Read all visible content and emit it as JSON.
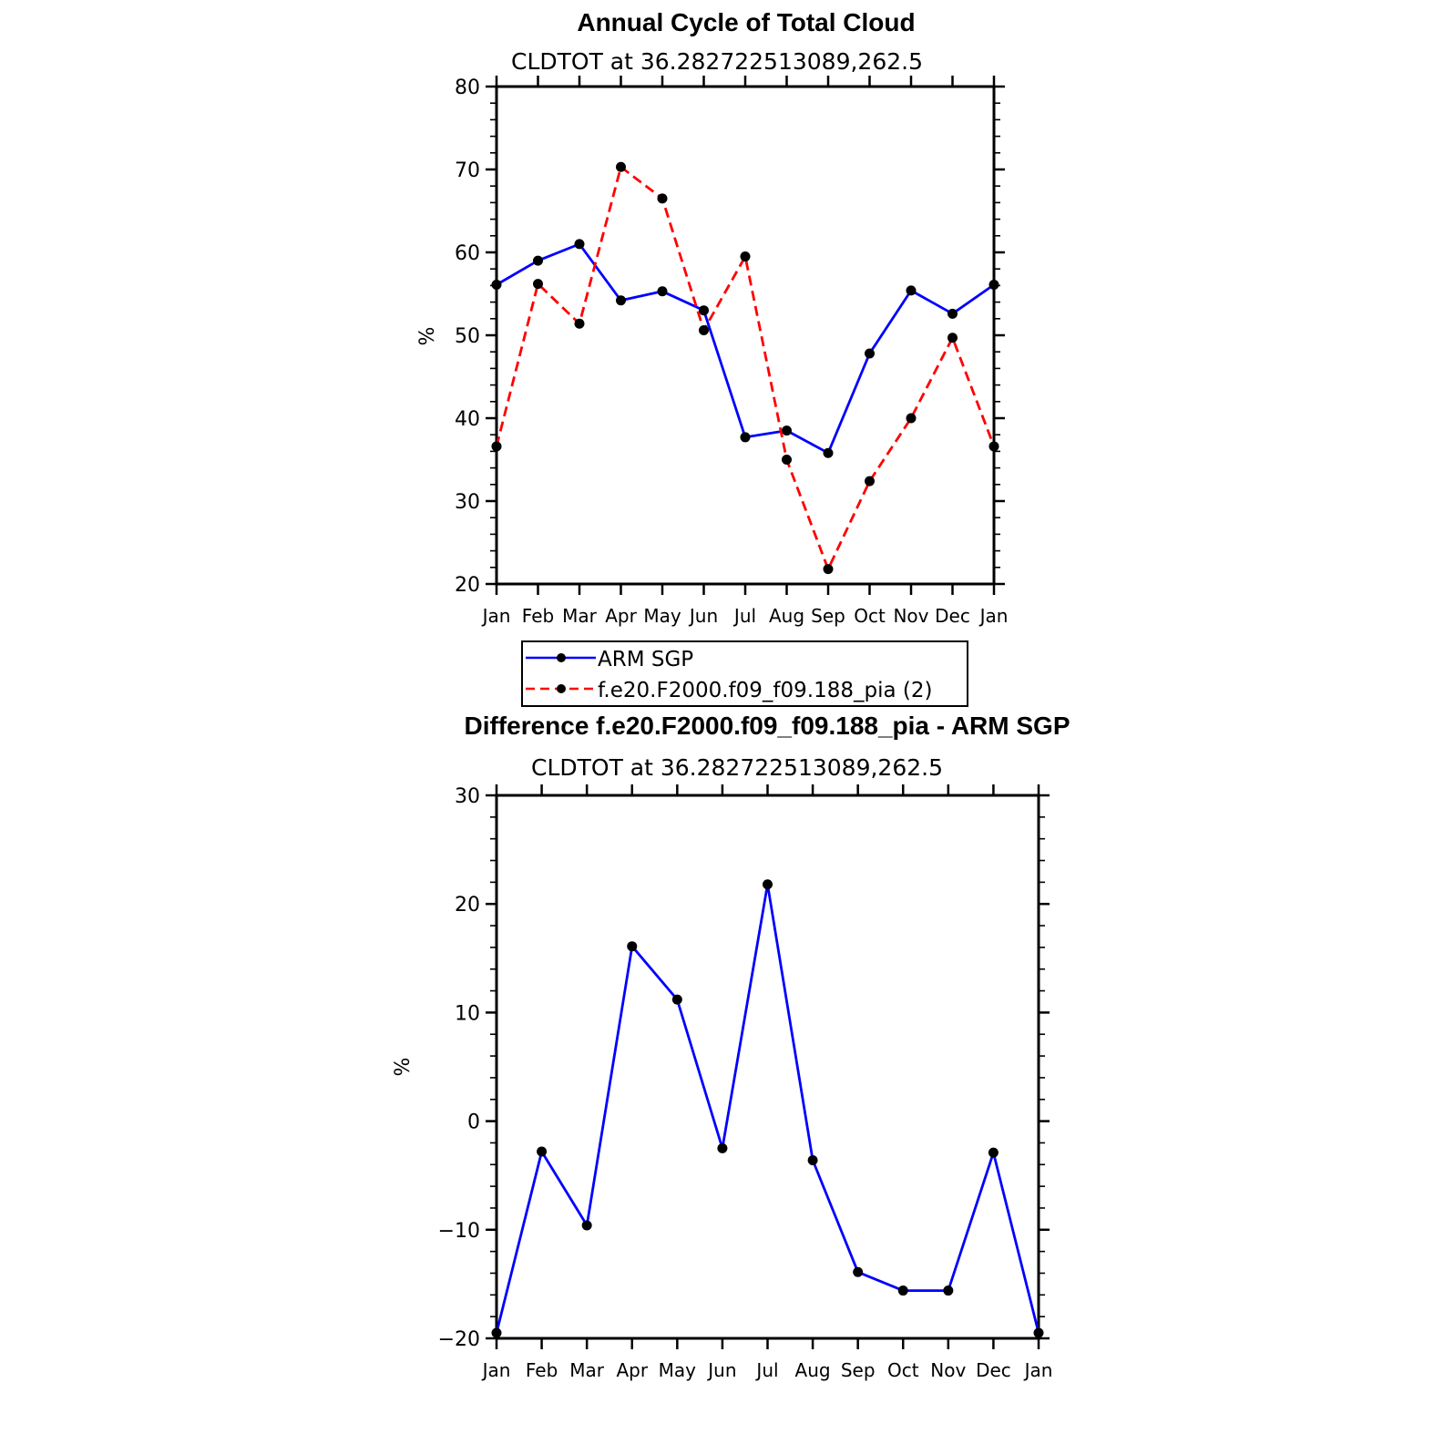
{
  "chart_data": [
    {
      "type": "line",
      "title": "Annual Cycle of Total Cloud",
      "subtitle": "CLDTOT at 36.282722513089,262.5",
      "ylabel": "%",
      "xlabel": "",
      "ylim": [
        20,
        80
      ],
      "yticks": [
        20,
        30,
        40,
        50,
        60,
        70,
        80
      ],
      "yticks_labels": [
        "20",
        "30",
        "40",
        "50",
        "60",
        "70",
        "80"
      ],
      "categories": [
        "Jan",
        "Feb",
        "Mar",
        "Apr",
        "May",
        "Jun",
        "Jul",
        "Aug",
        "Sep",
        "Oct",
        "Nov",
        "Dec",
        "Jan"
      ],
      "grid": false,
      "legend_placement": "bottom",
      "series": [
        {
          "name": "ARM SGP",
          "color": "#0000ff",
          "dash": "solid",
          "values": [
            56.1,
            59.0,
            61.0,
            54.2,
            55.3,
            53.0,
            37.7,
            38.5,
            35.8,
            47.8,
            55.4,
            52.6,
            56.1
          ]
        },
        {
          "name": "f.e20.F2000.f09_f09.188_pia (2)",
          "color": "#ff0000",
          "dash": "dashed",
          "values": [
            36.6,
            56.2,
            51.4,
            70.3,
            66.5,
            50.6,
            59.5,
            35.0,
            21.8,
            32.4,
            40.0,
            49.7,
            36.6
          ]
        }
      ]
    },
    {
      "type": "line",
      "title": "Difference f.e20.F2000.f09_f09.188_pia - ARM SGP",
      "subtitle": "CLDTOT at 36.282722513089,262.5",
      "ylabel": "%",
      "xlabel": "",
      "ylim": [
        -20,
        30
      ],
      "yticks": [
        -20,
        -10,
        0,
        10,
        20,
        30
      ],
      "yticks_labels": [
        "−20",
        "−10",
        "0",
        "10",
        "20",
        "30"
      ],
      "categories": [
        "Jan",
        "Feb",
        "Mar",
        "Apr",
        "May",
        "Jun",
        "Jul",
        "Aug",
        "Sep",
        "Oct",
        "Nov",
        "Dec",
        "Jan"
      ],
      "grid": false,
      "series": [
        {
          "color": "#0000ff",
          "dash": "solid",
          "values": [
            -19.5,
            -2.8,
            -9.6,
            16.1,
            11.2,
            -2.5,
            21.8,
            -3.6,
            -13.9,
            -15.6,
            -15.6,
            -2.9,
            -19.5
          ]
        }
      ]
    }
  ]
}
